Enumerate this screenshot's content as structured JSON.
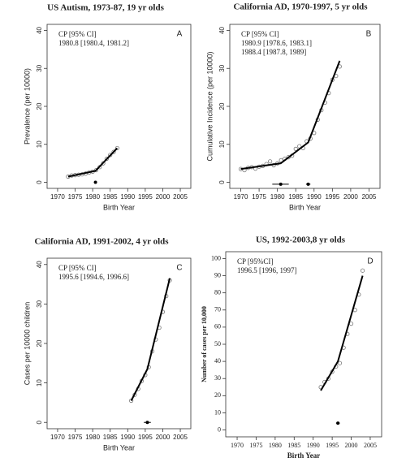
{
  "chart_data": [
    {
      "type": "scatter",
      "title": "US Autism, 1973-87, 19 yr olds",
      "x_label": "Birth Year",
      "y_label": "Prevalence (per 10000)",
      "panel_label": "A",
      "annotations": [
        "CP [95% CI]",
        "1980.8 [1980.4, 1981.2]"
      ],
      "xlim": [
        1967,
        2008
      ],
      "xticks": [
        1970,
        1975,
        1980,
        1985,
        1990,
        1995,
        2000,
        2005
      ],
      "ylim": [
        -1.6,
        41.6
      ],
      "yticks": [
        0,
        10,
        20,
        30,
        40
      ],
      "series": [
        {
          "color": "#777777",
          "marker": "circle",
          "x": [
            1973,
            1974,
            1975,
            1976,
            1977,
            1978,
            1979,
            1980,
            1981,
            1982,
            1983,
            1984,
            1985,
            1986,
            1987
          ],
          "values": [
            1.5,
            1.8,
            1.9,
            2.0,
            2.1,
            2.3,
            2.6,
            2.8,
            3.2,
            4.0,
            5.0,
            6.2,
            7.2,
            8.0,
            9.0
          ]
        },
        {
          "color": "#000000",
          "marker": "none",
          "x": [
            1973,
            1980.8,
            1987
          ],
          "values": [
            1.5,
            3.0,
            9.0
          ]
        }
      ],
      "changepoints": {
        "x": [
          1980.8
        ],
        "y": [
          0
        ],
        "ci_low": [
          1980.4
        ],
        "ci_high": [
          1981.2
        ]
      }
    },
    {
      "type": "scatter",
      "title": "California AD, 1970-1997, 5 yr olds",
      "x_label": "Birth Year",
      "y_label": "Cumulative Incidence (per 10000)",
      "panel_label": "B",
      "annotations": [
        "CP [95% CI]",
        "1980.9 [1978.6, 1983.1]",
        "1988.4 [1987.8, 1989]"
      ],
      "xlim": [
        1967,
        2008
      ],
      "xticks": [
        1970,
        1975,
        1980,
        1985,
        1990,
        1995,
        2000,
        2005
      ],
      "ylim": [
        -1.6,
        41.6
      ],
      "yticks": [
        0,
        10,
        20,
        30,
        40
      ],
      "series": [
        {
          "color": "#777777",
          "marker": "circle",
          "x": [
            1970,
            1971,
            1972,
            1973,
            1974,
            1975,
            1976,
            1977,
            1978,
            1979,
            1980,
            1981,
            1982,
            1983,
            1984,
            1985,
            1986,
            1987,
            1988,
            1989,
            1990,
            1991,
            1992,
            1993,
            1994,
            1995,
            1996,
            1997
          ],
          "values": [
            3.5,
            3.2,
            3.8,
            4.0,
            3.6,
            4.1,
            4.3,
            4.8,
            5.5,
            4.5,
            5.0,
            5.8,
            6.2,
            6.6,
            7.0,
            8.8,
            9.5,
            9.0,
            10.8,
            11.5,
            13,
            16.5,
            19,
            21,
            23.5,
            27,
            28,
            30.5
          ]
        },
        {
          "color": "#000000",
          "marker": "none",
          "x": [
            1970,
            1980.9,
            1988.4,
            1997
          ],
          "values": [
            3.5,
            5.0,
            10.5,
            32
          ]
        }
      ],
      "changepoints": {
        "x": [
          1980.9,
          1988.4
        ],
        "y": [
          -0.5,
          -0.5
        ],
        "ci_low": [
          1978.6,
          1987.8
        ],
        "ci_high": [
          1983.1,
          1989
        ]
      }
    },
    {
      "type": "scatter",
      "title": "California AD, 1991-2002, 4 yr olds",
      "x_label": "Birth Year",
      "y_label": "Cases per 10000 children",
      "panel_label": "C",
      "annotations": [
        "CP [95% CI]",
        "1995.6 [1994.6, 1996.6]"
      ],
      "xlim": [
        1967,
        2008
      ],
      "xticks": [
        1970,
        1975,
        1980,
        1985,
        1990,
        1995,
        2000,
        2005
      ],
      "ylim": [
        -1.6,
        41.6
      ],
      "yticks": [
        0,
        10,
        20,
        30,
        40
      ],
      "series": [
        {
          "color": "#777777",
          "marker": "circle",
          "x": [
            1991,
            1992,
            1993,
            1994,
            1995,
            1996,
            1997,
            1998,
            1999,
            2000,
            2001,
            2002
          ],
          "values": [
            5.5,
            7,
            8.5,
            10.5,
            12,
            14,
            18,
            21,
            24,
            28,
            32,
            36
          ]
        },
        {
          "color": "#000000",
          "marker": "none",
          "x": [
            1991,
            1995.6,
            2002
          ],
          "values": [
            5.5,
            13.5,
            36.5
          ]
        }
      ],
      "changepoints": {
        "x": [
          1995.6
        ],
        "y": [
          0
        ],
        "ci_low": [
          1994.6
        ],
        "ci_high": [
          1996.6
        ]
      }
    },
    {
      "type": "scatter",
      "title": "US, 1992-2003,8 yr olds",
      "x_label": "Birth Year",
      "y_label": "Number of cases per 10,000",
      "panel_label": "D",
      "annotations": [
        "CP [95%CI]",
        "1996.5 [1996, 1997]"
      ],
      "xlim": [
        1967,
        2008
      ],
      "xticks": [
        1970,
        1975,
        1980,
        1985,
        1990,
        1995,
        2000,
        2005
      ],
      "ylim": [
        -4,
        104
      ],
      "yticks": [
        0,
        10,
        20,
        30,
        40,
        50,
        60,
        70,
        80,
        90,
        100
      ],
      "series": [
        {
          "color": "#777777",
          "marker": "circle",
          "x": [
            1992,
            1993,
            1994,
            1995,
            1996,
            1997,
            1998,
            1999,
            2000,
            2001,
            2002,
            2003
          ],
          "values": [
            25,
            28,
            30,
            34,
            37,
            39,
            48,
            56,
            62,
            70,
            79,
            93
          ]
        },
        {
          "color": "#000000",
          "marker": "none",
          "x": [
            1992,
            1996.5,
            2003
          ],
          "values": [
            23,
            40,
            90
          ]
        }
      ],
      "changepoints": {
        "x": [
          1996.5
        ],
        "y": [
          4
        ],
        "ci_low": [
          1996
        ],
        "ci_high": [
          1997
        ]
      }
    }
  ]
}
